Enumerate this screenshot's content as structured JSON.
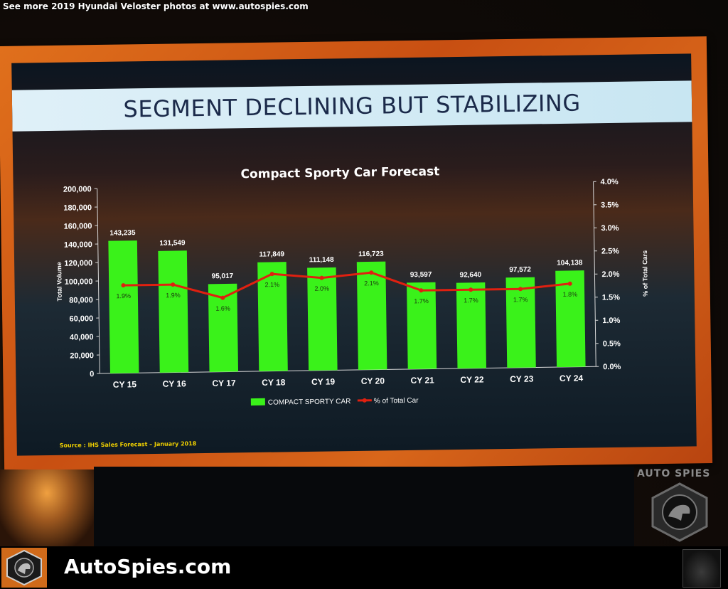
{
  "caption": "See more 2019 Hyundai Veloster photos at www.autospies.com",
  "slide": {
    "banner": "SEGMENT DECLINING BUT STABILIZING",
    "source": "Source : IHS Sales Forecast – January 2018"
  },
  "watermark": {
    "text": "AUTO SPIES"
  },
  "footer": {
    "brand": "AutoSpies.com"
  },
  "colors": {
    "bar": "#3af21a",
    "line": "#e02010",
    "frame": "#d65c16",
    "banner": "#dff0f8"
  },
  "chart_data": {
    "type": "bar",
    "title": "Compact Sporty Car Forecast",
    "categories": [
      "CY 15",
      "CY 16",
      "CY 17",
      "CY 18",
      "CY 19",
      "CY 20",
      "CY 21",
      "CY 22",
      "CY 23",
      "CY 24"
    ],
    "series": [
      {
        "name": "COMPACT SPORTY CAR",
        "axis": "left",
        "values": [
          143235,
          131549,
          95017,
          117849,
          111148,
          116723,
          93597,
          92640,
          97572,
          104138
        ],
        "labels": [
          "143,235",
          "131,549",
          "95,017",
          "117,849",
          "111,148",
          "116,723",
          "93,597",
          "92,640",
          "97,572",
          "104,138"
        ]
      },
      {
        "name": "% of Total Car",
        "type": "line",
        "axis": "right",
        "values": [
          1.9,
          1.9,
          1.6,
          2.1,
          2.0,
          2.1,
          1.7,
          1.7,
          1.7,
          1.8
        ],
        "labels": [
          "1.9%",
          "1.9%",
          "1.6%",
          "2.1%",
          "2.0%",
          "2.1%",
          "1.7%",
          "1.7%",
          "1.7%",
          "1.8%"
        ]
      }
    ],
    "ylabel": "Total Volume",
    "ylim": [
      0,
      200000
    ],
    "yticks": [
      "0",
      "20,000",
      "40,000",
      "60,000",
      "80,000",
      "100,000",
      "120,000",
      "140,000",
      "160,000",
      "180,000",
      "200,000"
    ],
    "y2label": "% of Total Cars",
    "y2lim": [
      0,
      4.0
    ],
    "y2ticks": [
      "0.0%",
      "0.5%",
      "1.0%",
      "1.5%",
      "2.0%",
      "2.5%",
      "3.0%",
      "3.5%",
      "4.0%"
    ],
    "legend": "bottom"
  }
}
